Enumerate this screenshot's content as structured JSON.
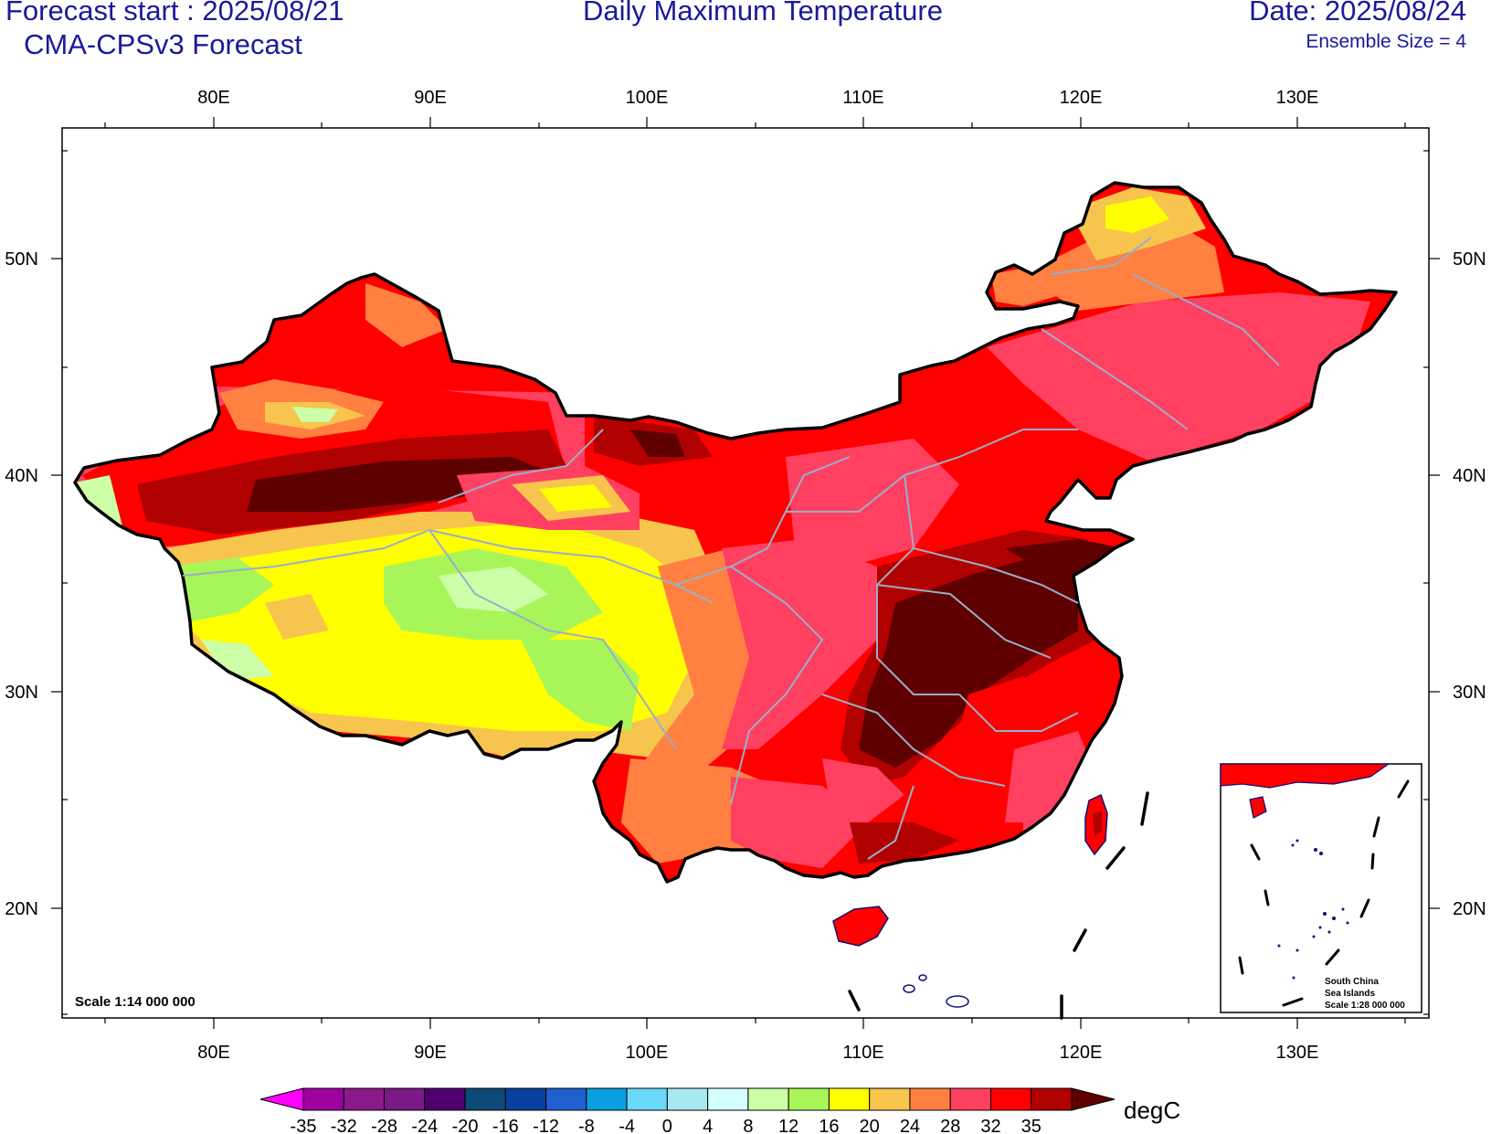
{
  "header": {
    "forecast_start": "Forecast start : 2025/08/21",
    "model": "CMA-CPSv3 Forecast",
    "title": "Daily Maximum Temperature",
    "date": "Date: 2025/08/24",
    "ensemble": "Ensemble Size = 4"
  },
  "map": {
    "lon_labels": [
      "80E",
      "90E",
      "100E",
      "110E",
      "120E",
      "130E"
    ],
    "lat_labels": [
      "50N",
      "40N",
      "30N",
      "20N"
    ],
    "scale_text": "Scale 1:14 000 000",
    "inset": {
      "line1": "South China",
      "line2": "Sea Islands",
      "line3": "Scale 1:28 000 000"
    }
  },
  "colorbar": {
    "unit": "degC",
    "labels": [
      "-35",
      "-32",
      "-28",
      "-24",
      "-20",
      "-16",
      "-12",
      "-8",
      "-4",
      "0",
      "4",
      "8",
      "12",
      "16",
      "20",
      "24",
      "28",
      "32",
      "35"
    ],
    "colors": [
      "#ff00ff",
      "#a000a0",
      "#8a1a8a",
      "#7a1a86",
      "#50006e",
      "#0e4a78",
      "#0a3fa0",
      "#1f5fd0",
      "#0a9fe0",
      "#6ad8f8",
      "#a8e8f0",
      "#d4ffff",
      "#ccffa8",
      "#a8f55a",
      "#ffff00",
      "#f7c44e",
      "#ff8040",
      "#ff4060",
      "#ff0000",
      "#b00000",
      "#5e0000"
    ]
  }
}
